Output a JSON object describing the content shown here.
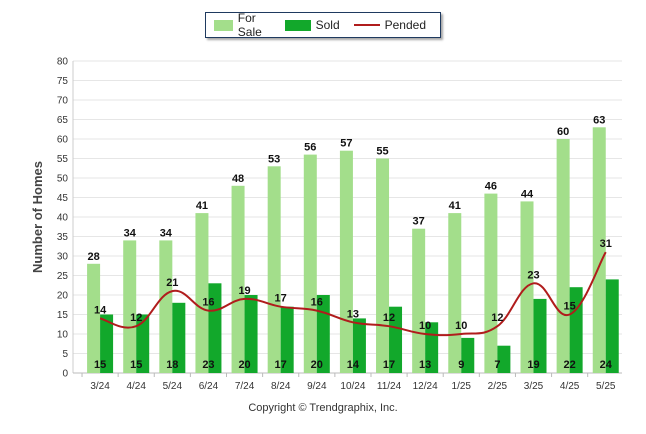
{
  "legend": {
    "for_sale": "For Sale",
    "sold": "Sold",
    "pended": "Pended"
  },
  "copyright": "Copyright © Trendgraphix, Inc.",
  "colors": {
    "for_sale": "#a3de8b",
    "sold": "#12a82b",
    "pended": "#b01c1c",
    "grid": "#e6e6e6"
  },
  "chart_data": {
    "type": "bar",
    "ylabel": "Number of Homes",
    "xlabel": "",
    "ylim": [
      0,
      80
    ],
    "ytick_step": 5,
    "grid": true,
    "legend_position": "top-center",
    "categories": [
      "3/24",
      "4/24",
      "5/24",
      "6/24",
      "7/24",
      "8/24",
      "9/24",
      "10/24",
      "11/24",
      "12/24",
      "1/25",
      "2/25",
      "3/25",
      "4/25",
      "5/25"
    ],
    "series": [
      {
        "name": "For Sale",
        "kind": "bar",
        "values": [
          28,
          34,
          34,
          41,
          48,
          53,
          56,
          57,
          55,
          37,
          41,
          46,
          44,
          60,
          63
        ]
      },
      {
        "name": "Sold",
        "kind": "bar",
        "values": [
          15,
          15,
          18,
          23,
          20,
          17,
          20,
          14,
          17,
          13,
          9,
          7,
          19,
          22,
          24
        ]
      },
      {
        "name": "Pended",
        "kind": "line",
        "values": [
          14,
          12,
          21,
          16,
          19,
          17,
          16,
          13,
          12,
          10,
          10,
          12,
          23,
          15,
          31
        ]
      }
    ]
  }
}
